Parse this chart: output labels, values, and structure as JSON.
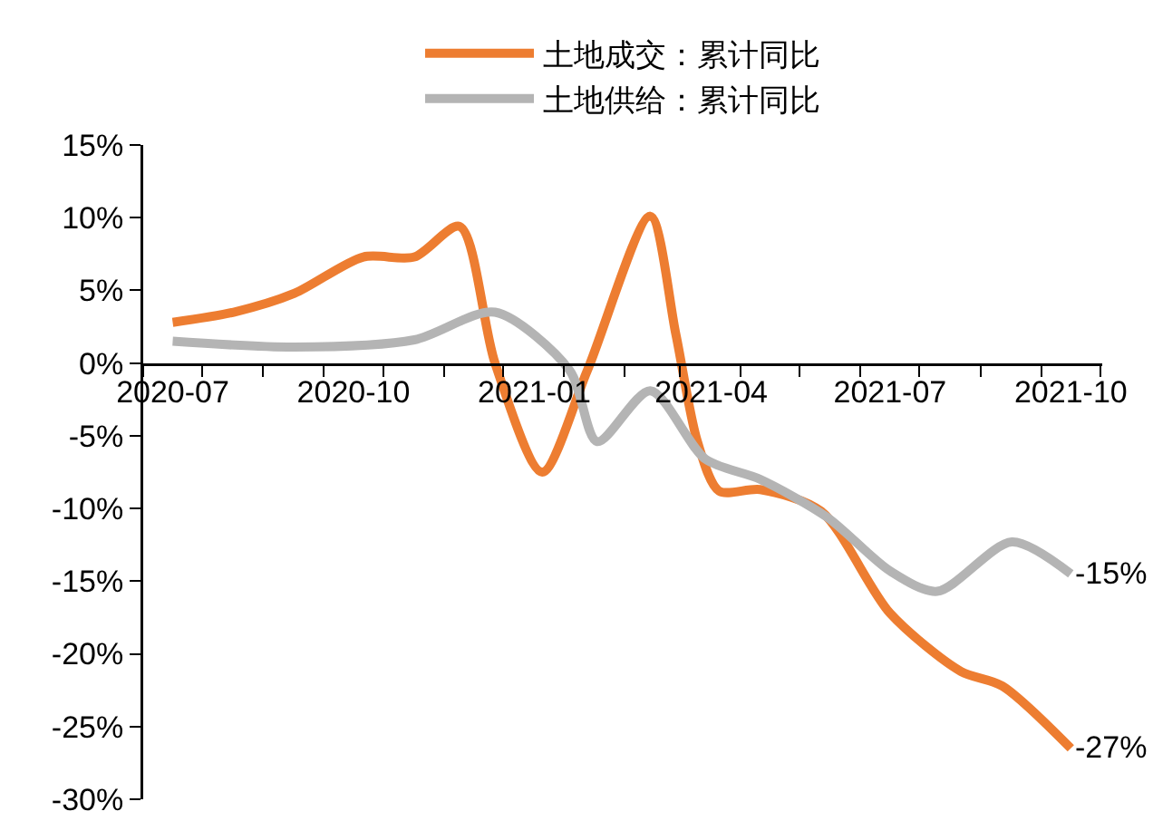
{
  "chart_data": {
    "type": "line",
    "legend": "top",
    "grid": false,
    "marker": "none",
    "line_style": "solid",
    "ylim": [
      -30,
      15
    ],
    "yticks": [
      {
        "value": 15,
        "label": "15%"
      },
      {
        "value": 10,
        "label": "10%"
      },
      {
        "value": 5,
        "label": "5%"
      },
      {
        "value": 0,
        "label": "0%"
      },
      {
        "value": -5,
        "label": "-5%"
      },
      {
        "value": -10,
        "label": "-10%"
      },
      {
        "value": -15,
        "label": "-15%"
      },
      {
        "value": -20,
        "label": "-20%"
      },
      {
        "value": -25,
        "label": "-25%"
      },
      {
        "value": -30,
        "label": "-30%"
      }
    ],
    "xlim": [
      "2020-06-16",
      "2021-10-17"
    ],
    "xticks": [
      "2020-07",
      "2020-10",
      "2021-01",
      "2021-04",
      "2021-07",
      "2021-10",
      {
        "value": "2020-06-16",
        "label": null
      },
      {
        "value": "2020-07-16",
        "label": null
      },
      {
        "value": "2020-08-16",
        "label": null
      },
      {
        "value": "2020-09-16",
        "label": null
      },
      {
        "value": "2020-10-16",
        "label": null
      },
      {
        "value": "2020-11-16",
        "label": null
      },
      {
        "value": "2020-12-16",
        "label": null
      },
      {
        "value": "2021-01-16",
        "label": null
      },
      {
        "value": "2021-02-16",
        "label": null
      },
      {
        "value": "2021-03-16",
        "label": null
      },
      {
        "value": "2021-04-16",
        "label": null
      },
      {
        "value": "2021-05-16",
        "label": null
      },
      {
        "value": "2021-06-16",
        "label": null
      },
      {
        "value": "2021-07-16",
        "label": null
      },
      {
        "value": "2021-08-16",
        "label": null
      },
      {
        "value": "2021-09-16",
        "label": null
      },
      {
        "value": "2021-10-16",
        "label": null
      }
    ],
    "series": [
      {
        "name": "土地成交：累计同比",
        "color": "#ed7d31",
        "x": [
          "2020-07-01",
          "2020-08-01",
          "2020-09-01",
          "2020-10-06",
          "2020-11-01",
          "2020-11-24",
          "2020-12-12",
          "2021-01-05",
          "2021-01-28",
          "2021-03-01",
          "2021-03-14",
          "2021-03-25",
          "2021-04-05",
          "2021-04-26",
          "2021-05-27",
          "2021-07-01",
          "2021-08-06",
          "2021-08-27",
          "2021-10-01"
        ],
        "values": [
          2.8,
          3.5,
          4.8,
          7.3,
          7.3,
          9.4,
          0,
          -7.5,
          -0.5,
          10.1,
          2,
          -5.4,
          -8.8,
          -8.7,
          -10.2,
          -17.2,
          -21.2,
          -22.2,
          -26.5
        ]
      },
      {
        "name": "土地供给：累计同比",
        "color": "#b4b4b4",
        "x": [
          "2020-07-01",
          "2020-09-01",
          "2020-11-01",
          "2020-12-12",
          "2021-01-19",
          "2021-02-02",
          "2021-03-01",
          "2021-03-29",
          "2021-04-26",
          "2021-05-30",
          "2021-07-01",
          "2021-07-25",
          "2021-09-01",
          "2021-10-01"
        ],
        "values": [
          1.5,
          1.1,
          1.6,
          3.5,
          -0.5,
          -5.4,
          -1.9,
          -6.6,
          -8.0,
          -10.6,
          -14.3,
          -15.7,
          -12.3,
          -14.5
        ]
      }
    ],
    "annotations": [
      {
        "text": "-27%",
        "x": "2021-10-01",
        "y": -26.5
      },
      {
        "text": "-15%",
        "x": "2021-10-01",
        "y": -14.5
      }
    ]
  }
}
